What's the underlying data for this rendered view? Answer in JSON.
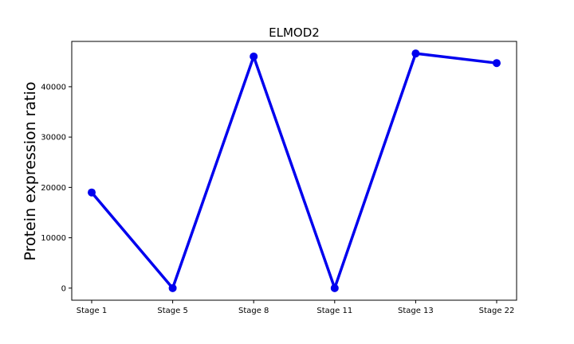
{
  "chart_data": {
    "type": "line",
    "title": "ELMOD2",
    "xlabel": "",
    "ylabel": "Protein expression ratio",
    "categories": [
      "Stage 1",
      "Stage 5",
      "Stage 8",
      "Stage 11",
      "Stage 13",
      "Stage 22"
    ],
    "series": [
      {
        "values": [
          19000,
          0,
          46000,
          0,
          46600,
          44700
        ],
        "color": "#0000ee"
      }
    ],
    "yticks": [
      0,
      10000,
      20000,
      30000,
      40000
    ],
    "ylim": [
      -2400,
      49000
    ],
    "grid": false,
    "legend": "none"
  }
}
